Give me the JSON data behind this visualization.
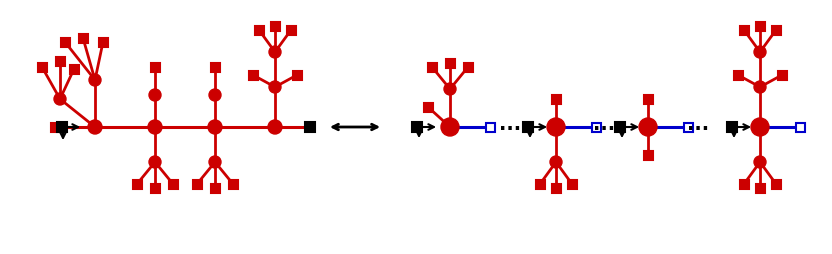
{
  "red": "#cc0000",
  "blue": "#0000cc",
  "black": "#000000",
  "bg": "#ffffff",
  "lw": 2.0,
  "node_r": 6,
  "sq_size": 8,
  "figsize": [
    8.32,
    2.54
  ],
  "dpi": 100
}
